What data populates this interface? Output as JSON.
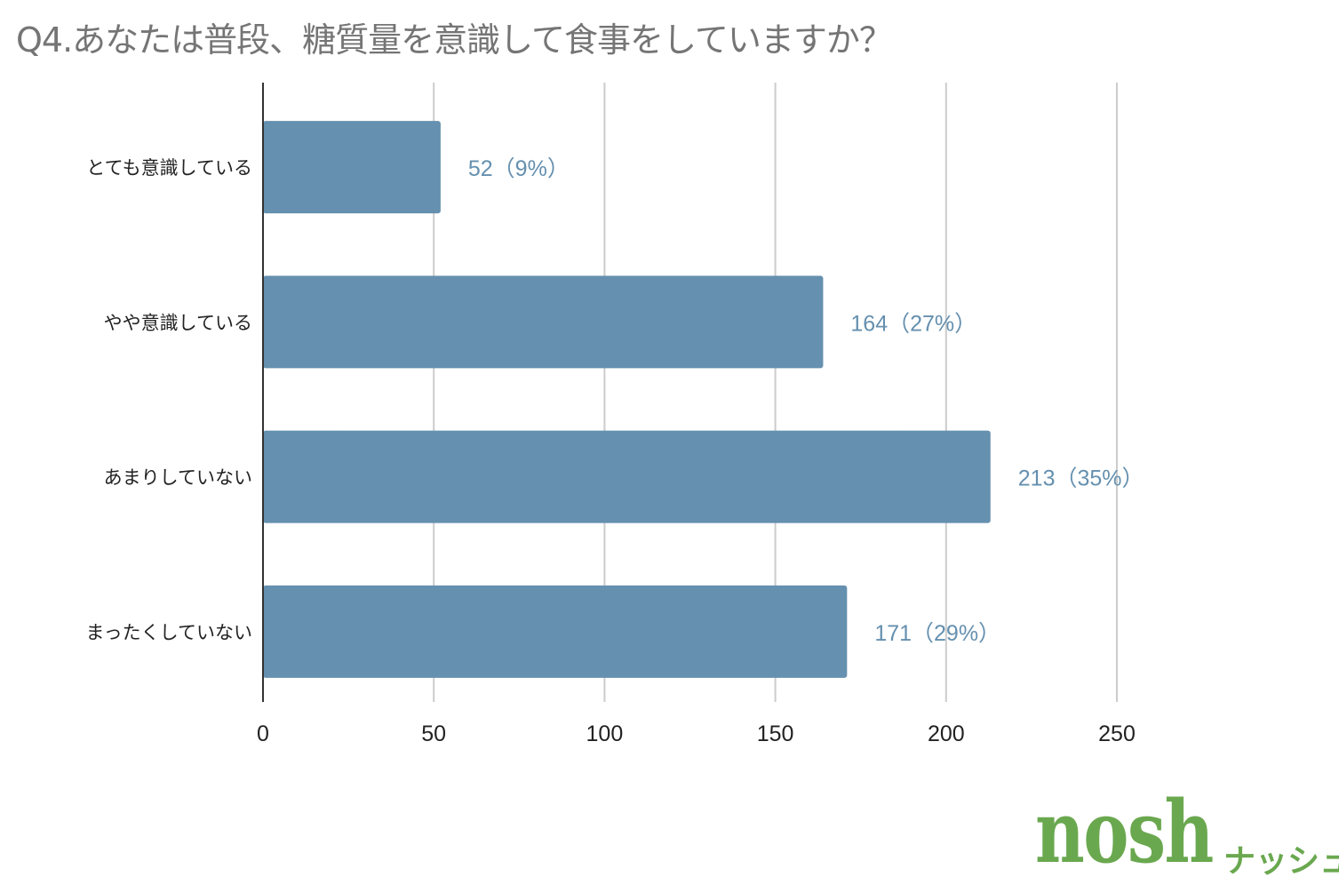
{
  "chart_data": {
    "type": "bar",
    "orientation": "horizontal",
    "title": "Q4.あなたは普段、糖質量を意識して食事をしていますか？",
    "categories": [
      "とても意識している",
      "やや意識している",
      "あまりしていない",
      "まったくしていない"
    ],
    "values": [
      52,
      164,
      213,
      171
    ],
    "data_labels": [
      "52（9%）",
      "164（27%）",
      "213（35%）",
      "171（29%）"
    ],
    "xlim": [
      0,
      250
    ],
    "x_ticks": [
      "0",
      "50",
      "100",
      "150",
      "200",
      "250"
    ],
    "grid": true,
    "bar_color": "#6590af",
    "label_color": "#6590af",
    "xlabel": "",
    "ylabel": ""
  },
  "logo": {
    "text": "nosh",
    "kana": "ナッシュ",
    "color": "#6aa84f"
  }
}
